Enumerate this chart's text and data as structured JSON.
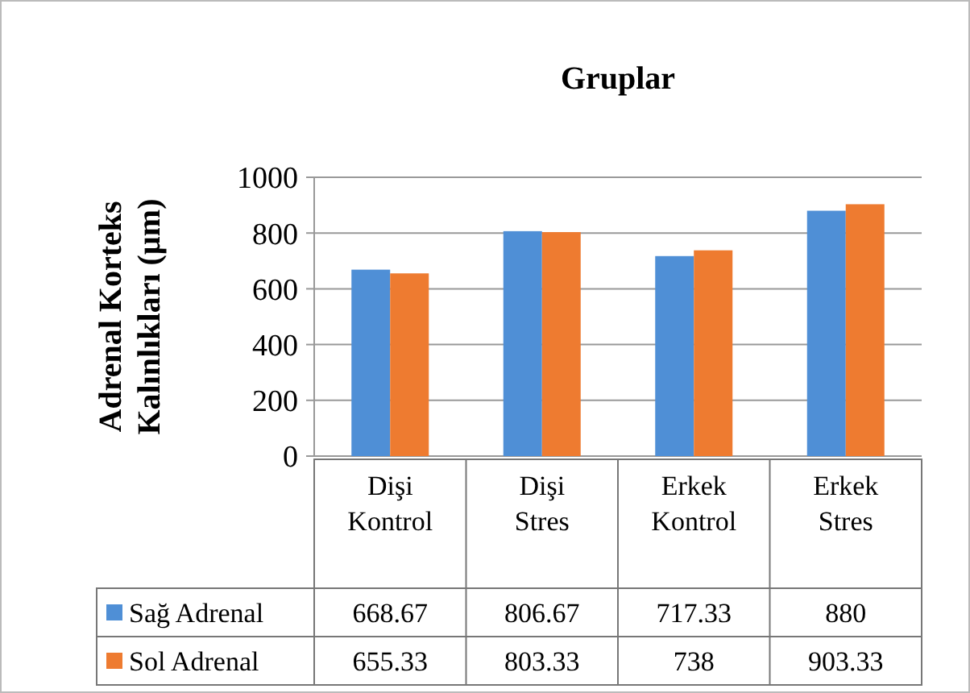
{
  "chart_data": {
    "type": "bar",
    "title": "Gruplar",
    "ylabel": "Adrenal Korteks Kalınlıkları (µm)",
    "categories": [
      "Dişi Kontrol",
      "Dişi Stres",
      "Erkek Kontrol",
      "Erkek Stres"
    ],
    "series": [
      {
        "name": "Sağ Adrenal",
        "color": "#4f8fd6",
        "values": [
          668.67,
          806.67,
          717.33,
          880
        ]
      },
      {
        "name": "Sol Adrenal",
        "color": "#ee7b30",
        "values": [
          655.33,
          803.33,
          738,
          903.33
        ]
      }
    ],
    "ylim": [
      0,
      1000
    ],
    "yticks": [
      0,
      200,
      400,
      600,
      800,
      1000
    ],
    "grid": "y",
    "data_labels": true,
    "legend": "bottom"
  }
}
